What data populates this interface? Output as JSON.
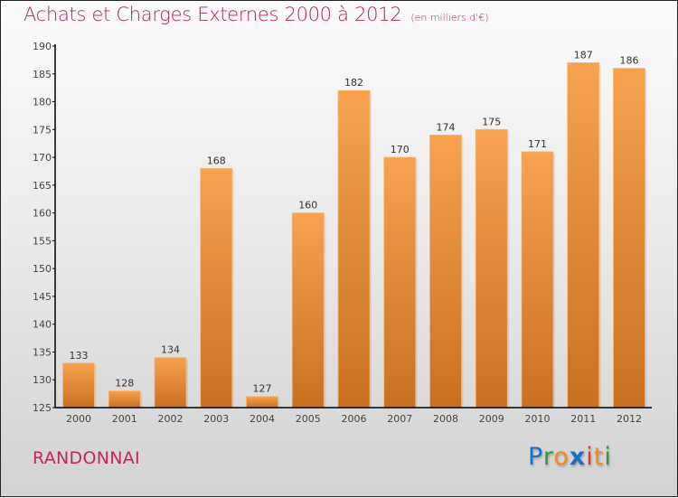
{
  "header": {
    "title": "Achats et Charges Externes 2000 à 2012",
    "subtitle": "(en milliers d'€)"
  },
  "footer": {
    "place": "RANDONNAI",
    "logo": {
      "letters": [
        {
          "char": "P",
          "color": "#1a6fc9"
        },
        {
          "char": "r",
          "color": "#2e9a3a"
        },
        {
          "char": "o",
          "color": "#f28a1c"
        },
        {
          "char": "x",
          "color": "#1a6fc9"
        },
        {
          "char": "i",
          "color": "#e23a2a"
        },
        {
          "char": "t",
          "color": "#f28a1c"
        },
        {
          "char": "i",
          "color": "#2e9a3a"
        }
      ]
    }
  },
  "colors": {
    "title": "#b3224f",
    "bar_top": "#f7a24e",
    "bar_bottom": "#c8701e",
    "axis": "#000000"
  },
  "chart_data": {
    "type": "bar",
    "title": "Achats et Charges Externes 2000 à 2012",
    "subtitle": "(en milliers d'€)",
    "xlabel": "",
    "ylabel": "",
    "categories": [
      "2000",
      "2001",
      "2002",
      "2003",
      "2004",
      "2005",
      "2006",
      "2007",
      "2008",
      "2009",
      "2010",
      "2011",
      "2012"
    ],
    "values": [
      133,
      128,
      134,
      168,
      127,
      160,
      182,
      170,
      174,
      175,
      171,
      187,
      186
    ],
    "ylim": [
      125,
      190
    ],
    "yticks": [
      125,
      130,
      135,
      140,
      145,
      150,
      155,
      160,
      165,
      170,
      175,
      180,
      185,
      190
    ],
    "grid": false,
    "data_labels": true
  }
}
